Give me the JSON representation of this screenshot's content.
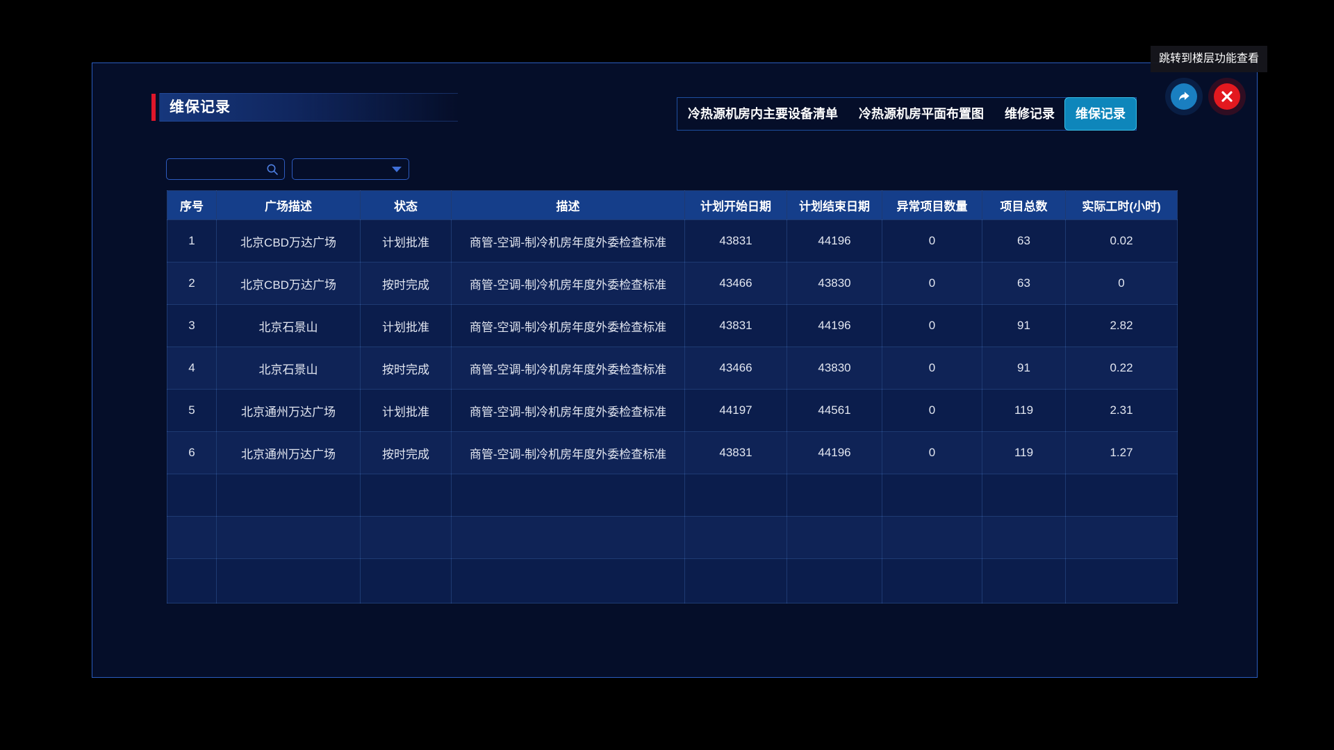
{
  "tooltip": {
    "text": "跳转到楼层功能查看"
  },
  "header": {
    "title": "维保记录",
    "tabs": [
      {
        "name": "tab-equipment-list",
        "label": "冷热源机房内主要设备清单",
        "active": false
      },
      {
        "name": "tab-floor-plan",
        "label": "冷热源机房平面布置图",
        "active": false
      },
      {
        "name": "tab-repair-records",
        "label": "维修记录",
        "active": false
      },
      {
        "name": "tab-maintenance-records",
        "label": "维保记录",
        "active": true
      }
    ],
    "actions": [
      {
        "name": "jump-to-floor-button",
        "icon": "share-arrow-icon",
        "color": "#1a7fc1"
      },
      {
        "name": "close-button",
        "icon": "close-icon",
        "color": "#e3191f"
      }
    ]
  },
  "filters": {
    "search": {
      "value": "",
      "placeholder": "",
      "icon": "search-icon"
    },
    "select": {
      "value": "",
      "icon": "caret-down-icon"
    }
  },
  "table": {
    "columns": [
      "序号",
      "广场描述",
      "状态",
      "描述",
      "计划开始日期",
      "计划结束日期",
      "异常项目数量",
      "项目总数",
      "实际工时(小时)"
    ],
    "rows": [
      [
        "1",
        "北京CBD万达广场",
        "计划批准",
        "商管-空调-制冷机房年度外委检查标准",
        "43831",
        "44196",
        "0",
        "63",
        "0.02"
      ],
      [
        "2",
        "北京CBD万达广场",
        "按时完成",
        "商管-空调-制冷机房年度外委检查标准",
        "43466",
        "43830",
        "0",
        "63",
        "0"
      ],
      [
        "3",
        "北京石景山",
        "计划批准",
        "商管-空调-制冷机房年度外委检查标准",
        "43831",
        "44196",
        "0",
        "91",
        "2.82"
      ],
      [
        "4",
        "北京石景山",
        "按时完成",
        "商管-空调-制冷机房年度外委检查标准",
        "43466",
        "43830",
        "0",
        "91",
        "0.22"
      ],
      [
        "5",
        "北京通州万达广场",
        "计划批准",
        "商管-空调-制冷机房年度外委检查标准",
        "44197",
        "44561",
        "0",
        "119",
        "2.31"
      ],
      [
        "6",
        "北京通州万达广场",
        "按时完成",
        "商管-空调-制冷机房年度外委检查标准",
        "43831",
        "44196",
        "0",
        "119",
        "1.27"
      ]
    ],
    "empty_rows": 3
  },
  "colors": {
    "accent_red": "#e0172a",
    "panel_border": "#2b5dc1",
    "panel_bg": "#050e29",
    "table_header_bg": "#153e8a",
    "active_tab_bg": "#0e86bb",
    "active_tab_border": "#39c0e8",
    "jump_button_bg": "#1a7fc1",
    "close_button_bg": "#e3191f"
  }
}
